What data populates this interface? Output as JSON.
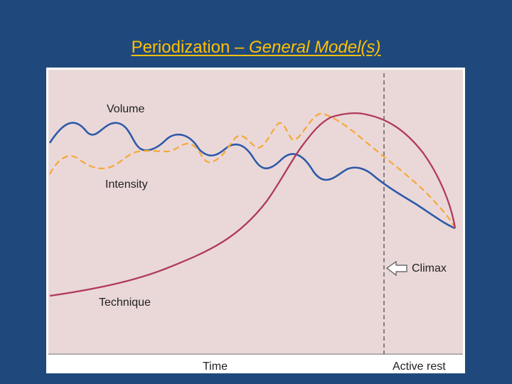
{
  "slide": {
    "title_main": "Periodization – ",
    "title_italic": "General Model(s)"
  },
  "figure": {
    "labels": {
      "volume": "Volume",
      "intensity": "Intensity",
      "technique": "Technique",
      "climax": "Climax",
      "time": "Time",
      "active_rest": "Active rest"
    },
    "colors": {
      "background": "#1f497d",
      "title": "#ffc000",
      "plot_background": "#ead8d9",
      "volume": "#2e5aa8",
      "intensity": "#f5a93b",
      "technique": "#b03a5b",
      "climax_marker": "#555555"
    }
  }
}
